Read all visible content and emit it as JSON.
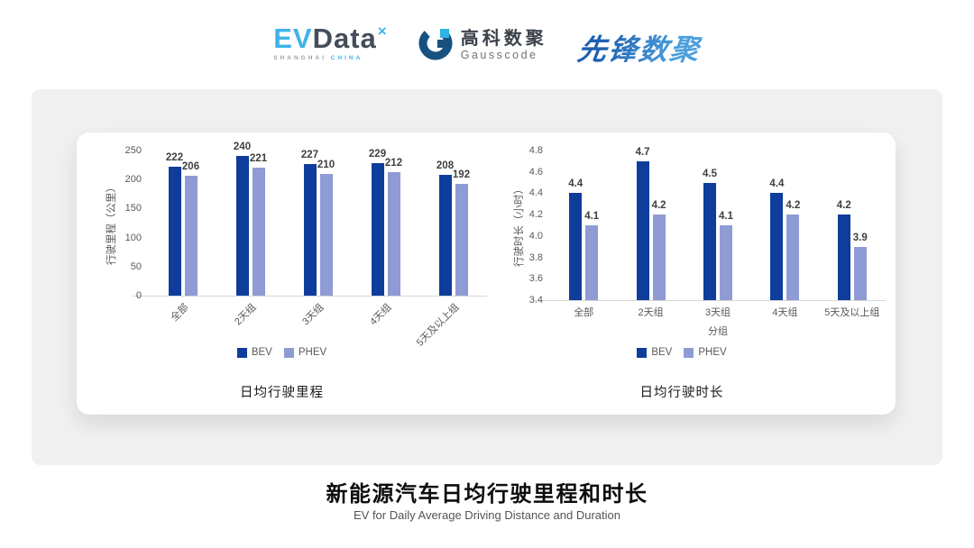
{
  "header": {
    "evdata": {
      "ev": "EV",
      "data": "Data",
      "mark": "×",
      "sub_left": "SHANGHAI",
      "sub_right": "CHINA"
    },
    "gausscode": {
      "cn": "高科数聚",
      "en": "Gausscode"
    },
    "pioneer": "先锋数聚"
  },
  "colors": {
    "bev": "#0e3d9c",
    "phev": "#8f9bd4",
    "axis_text": "#595959",
    "value_text": "#3f3f3f",
    "axis_line": "#d6d6d6"
  },
  "chart_data": [
    {
      "type": "bar",
      "title": "日均行驶里程",
      "ylabel": "行驶里程（公里）",
      "xlabel": "",
      "categories": [
        "全部",
        "2天组",
        "3天组",
        "4天组",
        "5天及以上组"
      ],
      "series": [
        {
          "name": "BEV",
          "values": [
            222,
            240,
            227,
            229,
            208
          ]
        },
        {
          "name": "PHEV",
          "values": [
            206,
            221,
            210,
            212,
            192
          ]
        }
      ],
      "ylim": [
        0,
        250
      ],
      "yticks": [
        0,
        50,
        100,
        150,
        200,
        250
      ],
      "grid": false,
      "legend_position": "bottom",
      "xtick_rotation": -45
    },
    {
      "type": "bar",
      "title": "日均行驶时长",
      "ylabel": "行驶时长（小时）",
      "xlabel": "分组",
      "categories": [
        "全部",
        "2天组",
        "3天组",
        "4天组",
        "5天及以上组"
      ],
      "series": [
        {
          "name": "BEV",
          "values": [
            4.4,
            4.7,
            4.5,
            4.4,
            4.2
          ]
        },
        {
          "name": "PHEV",
          "values": [
            4.1,
            4.2,
            4.1,
            4.2,
            3.9
          ]
        }
      ],
      "ylim": [
        3.4,
        4.8
      ],
      "yticks": [
        3.4,
        3.6,
        3.8,
        4.0,
        4.2,
        4.4,
        4.6,
        4.8
      ],
      "grid": false,
      "legend_position": "bottom",
      "xtick_rotation": 0
    }
  ],
  "footer": {
    "title": "新能源汽车日均行驶里程和时长",
    "subtitle": "EV for Daily Average Driving Distance and Duration"
  }
}
